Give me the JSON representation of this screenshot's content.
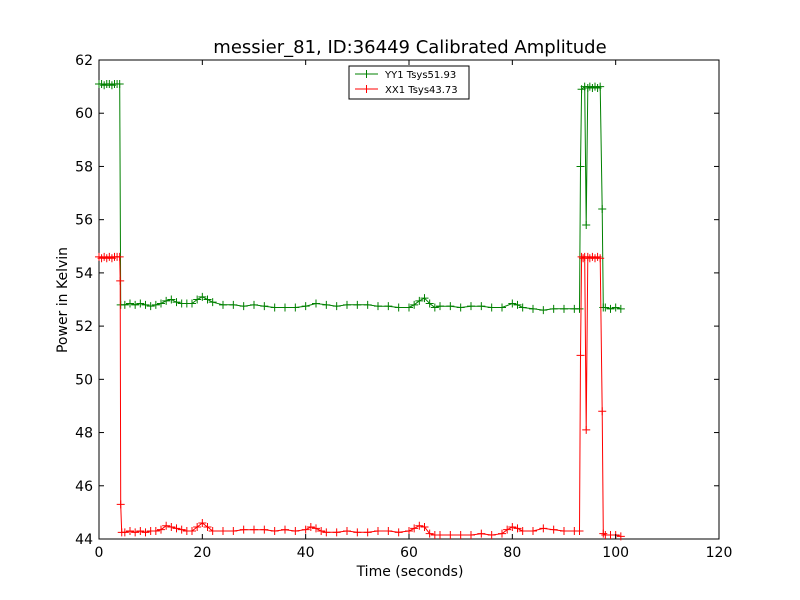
{
  "chart_data": {
    "type": "line",
    "title": "messier_81, ID:36449 Calibrated Amplitude",
    "xlabel": "Time (seconds)",
    "ylabel": "Power in Kelvin",
    "xlim": [
      0,
      120
    ],
    "ylim": [
      44,
      62
    ],
    "xticks": [
      0,
      20,
      40,
      60,
      80,
      100,
      120
    ],
    "yticks": [
      44,
      46,
      48,
      50,
      52,
      54,
      56,
      58,
      60,
      62
    ],
    "grid": false,
    "legend_position": "top-center",
    "marker": "+",
    "series": [
      {
        "name": "YY1 Tsys51.93",
        "color": "#008000",
        "points": [
          [
            0,
            61.1
          ],
          [
            0.5,
            61.1
          ],
          [
            1,
            61.05
          ],
          [
            1.5,
            61.1
          ],
          [
            2,
            61.1
          ],
          [
            2.5,
            61.05
          ],
          [
            3,
            61.1
          ],
          [
            3.5,
            61.1
          ],
          [
            4,
            61.1
          ],
          [
            4.2,
            52.8
          ],
          [
            5,
            52.8
          ],
          [
            6,
            52.85
          ],
          [
            7,
            52.8
          ],
          [
            8,
            52.85
          ],
          [
            9,
            52.8
          ],
          [
            10,
            52.75
          ],
          [
            11,
            52.8
          ],
          [
            12,
            52.85
          ],
          [
            13,
            52.95
          ],
          [
            14,
            53.0
          ],
          [
            15,
            52.9
          ],
          [
            16,
            52.85
          ],
          [
            17,
            52.85
          ],
          [
            18,
            52.85
          ],
          [
            19,
            53.0
          ],
          [
            20,
            53.1
          ],
          [
            21,
            53.0
          ],
          [
            22,
            52.9
          ],
          [
            24,
            52.8
          ],
          [
            26,
            52.8
          ],
          [
            28,
            52.75
          ],
          [
            30,
            52.8
          ],
          [
            32,
            52.75
          ],
          [
            34,
            52.7
          ],
          [
            36,
            52.7
          ],
          [
            38,
            52.7
          ],
          [
            40,
            52.75
          ],
          [
            42,
            52.85
          ],
          [
            44,
            52.8
          ],
          [
            46,
            52.75
          ],
          [
            48,
            52.8
          ],
          [
            50,
            52.8
          ],
          [
            52,
            52.8
          ],
          [
            54,
            52.75
          ],
          [
            56,
            52.75
          ],
          [
            58,
            52.7
          ],
          [
            60,
            52.7
          ],
          [
            61,
            52.8
          ],
          [
            62,
            52.95
          ],
          [
            63,
            53.05
          ],
          [
            64,
            52.85
          ],
          [
            65,
            52.7
          ],
          [
            66,
            52.75
          ],
          [
            68,
            52.75
          ],
          [
            70,
            52.7
          ],
          [
            72,
            52.75
          ],
          [
            74,
            52.75
          ],
          [
            76,
            52.7
          ],
          [
            78,
            52.7
          ],
          [
            80,
            52.85
          ],
          [
            81,
            52.8
          ],
          [
            82,
            52.7
          ],
          [
            84,
            52.65
          ],
          [
            86,
            52.6
          ],
          [
            88,
            52.65
          ],
          [
            90,
            52.65
          ],
          [
            92,
            52.65
          ],
          [
            93,
            52.65
          ],
          [
            93.2,
            58.0
          ],
          [
            93.4,
            60.9
          ],
          [
            94.0,
            61.0
          ],
          [
            94.3,
            55.8
          ],
          [
            94.6,
            60.95
          ],
          [
            95,
            61.0
          ],
          [
            95.5,
            60.95
          ],
          [
            96,
            61.0
          ],
          [
            96.5,
            60.95
          ],
          [
            97,
            61.0
          ],
          [
            97.4,
            56.4
          ],
          [
            97.6,
            52.7
          ],
          [
            98,
            52.7
          ],
          [
            99,
            52.65
          ],
          [
            100,
            52.7
          ],
          [
            101,
            52.65
          ]
        ]
      },
      {
        "name": "XX1 Tsys43.73",
        "color": "#ff0000",
        "points": [
          [
            0,
            54.6
          ],
          [
            0.5,
            54.55
          ],
          [
            1,
            54.6
          ],
          [
            1.5,
            54.55
          ],
          [
            2,
            54.6
          ],
          [
            2.5,
            54.55
          ],
          [
            3,
            54.6
          ],
          [
            3.5,
            54.6
          ],
          [
            4,
            54.6
          ],
          [
            4.1,
            53.7
          ],
          [
            4.2,
            45.3
          ],
          [
            4.4,
            44.25
          ],
          [
            5,
            44.25
          ],
          [
            6,
            44.3
          ],
          [
            7,
            44.25
          ],
          [
            8,
            44.3
          ],
          [
            9,
            44.25
          ],
          [
            10,
            44.3
          ],
          [
            11,
            44.3
          ],
          [
            12,
            44.35
          ],
          [
            13,
            44.5
          ],
          [
            14,
            44.45
          ],
          [
            15,
            44.4
          ],
          [
            16,
            44.35
          ],
          [
            17,
            44.3
          ],
          [
            18,
            44.3
          ],
          [
            19,
            44.45
          ],
          [
            20,
            44.6
          ],
          [
            21,
            44.45
          ],
          [
            22,
            44.3
          ],
          [
            24,
            44.3
          ],
          [
            26,
            44.3
          ],
          [
            28,
            44.35
          ],
          [
            30,
            44.35
          ],
          [
            32,
            44.35
          ],
          [
            34,
            44.3
          ],
          [
            36,
            44.35
          ],
          [
            38,
            44.3
          ],
          [
            40,
            44.35
          ],
          [
            41,
            44.45
          ],
          [
            42,
            44.4
          ],
          [
            43,
            44.3
          ],
          [
            44,
            44.25
          ],
          [
            46,
            44.25
          ],
          [
            48,
            44.3
          ],
          [
            50,
            44.25
          ],
          [
            52,
            44.25
          ],
          [
            54,
            44.3
          ],
          [
            56,
            44.3
          ],
          [
            58,
            44.25
          ],
          [
            60,
            44.3
          ],
          [
            61,
            44.4
          ],
          [
            62,
            44.5
          ],
          [
            63,
            44.45
          ],
          [
            64,
            44.2
          ],
          [
            65,
            44.15
          ],
          [
            66,
            44.15
          ],
          [
            68,
            44.15
          ],
          [
            70,
            44.15
          ],
          [
            72,
            44.15
          ],
          [
            74,
            44.2
          ],
          [
            76,
            44.15
          ],
          [
            78,
            44.2
          ],
          [
            79,
            44.35
          ],
          [
            80,
            44.45
          ],
          [
            81,
            44.4
          ],
          [
            82,
            44.3
          ],
          [
            84,
            44.3
          ],
          [
            86,
            44.4
          ],
          [
            88,
            44.35
          ],
          [
            90,
            44.3
          ],
          [
            92,
            44.3
          ],
          [
            93,
            44.3
          ],
          [
            93.2,
            50.9
          ],
          [
            93.4,
            54.6
          ],
          [
            93.7,
            54.55
          ],
          [
            94.0,
            54.6
          ],
          [
            94.3,
            48.1
          ],
          [
            94.6,
            54.6
          ],
          [
            95,
            54.55
          ],
          [
            95.5,
            54.6
          ],
          [
            96,
            54.55
          ],
          [
            96.5,
            54.6
          ],
          [
            97,
            54.55
          ],
          [
            97.4,
            48.8
          ],
          [
            97.6,
            44.2
          ],
          [
            98,
            44.15
          ],
          [
            99,
            44.15
          ],
          [
            100,
            44.15
          ],
          [
            101,
            44.1
          ]
        ]
      }
    ]
  }
}
